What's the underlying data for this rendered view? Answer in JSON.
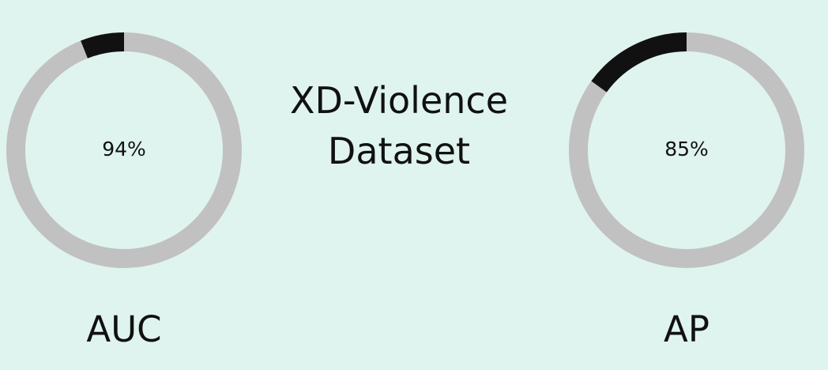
{
  "title": {
    "line1": "XD-Violence",
    "line2": "Dataset"
  },
  "colors": {
    "background": "#dff4ee",
    "track": "#c1c1c1",
    "progress": "#111111",
    "text": "#111111"
  },
  "chart_data": [
    {
      "type": "pie",
      "name": "AUC",
      "value": 94,
      "value_label": "94%",
      "label": "AUC",
      "progress_fraction": 0.06,
      "start": "12 o'clock",
      "direction": "counter-clockwise"
    },
    {
      "type": "pie",
      "name": "AP",
      "value": 85,
      "value_label": "85%",
      "label": "AP",
      "progress_fraction": 0.15,
      "start": "12 o'clock",
      "direction": "counter-clockwise"
    }
  ]
}
